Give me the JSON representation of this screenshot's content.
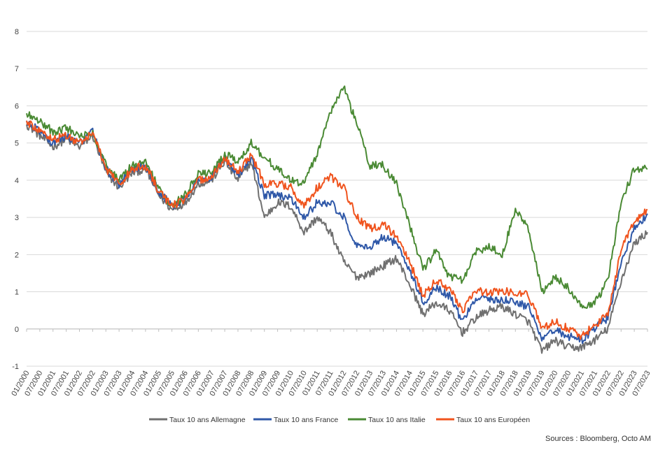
{
  "chart_data": {
    "type": "line",
    "title": "",
    "xlabel": "",
    "ylabel": "",
    "ylim": [
      -1,
      8
    ],
    "yticks": [
      "-1",
      "0",
      "1",
      "2",
      "3",
      "4",
      "5",
      "6",
      "7",
      "8"
    ],
    "grid": true,
    "legend_position": "bottom",
    "x_tick_labels": [
      "01/2000",
      "07/2000",
      "01/2001",
      "07/2001",
      "01/2002",
      "07/2002",
      "01/2003",
      "07/2003",
      "01/2004",
      "07/2004",
      "01/2005",
      "07/2005",
      "01/2006",
      "07/2006",
      "01/2007",
      "07/2007",
      "01/2008",
      "07/2008",
      "01/2009",
      "07/2009",
      "01/2010",
      "07/2010",
      "01/2011",
      "07/2011",
      "01/2012",
      "07/2012",
      "01/2013",
      "07/2013",
      "01/2014",
      "07/2014",
      "01/2015",
      "07/2015",
      "01/2016",
      "07/2016",
      "01/2017",
      "07/2017",
      "01/2018",
      "07/2018",
      "01/2019",
      "07/2019",
      "01/2020",
      "07/2020",
      "01/2021",
      "07/2021",
      "01/2022",
      "07/2022",
      "01/2023",
      "07/2023"
    ],
    "series": [
      {
        "name": "Taux 10 ans Allemagne",
        "color": "#707070",
        "points": [
          [
            "01/2000",
            5.5
          ],
          [
            "07/2000",
            5.2
          ],
          [
            "01/2001",
            4.9
          ],
          [
            "07/2001",
            5.1
          ],
          [
            "01/2002",
            4.9
          ],
          [
            "07/2002",
            5.2
          ],
          [
            "01/2003",
            4.2
          ],
          [
            "07/2003",
            3.8
          ],
          [
            "01/2004",
            4.2
          ],
          [
            "07/2004",
            4.3
          ],
          [
            "01/2005",
            3.6
          ],
          [
            "07/2005",
            3.2
          ],
          [
            "01/2006",
            3.4
          ],
          [
            "07/2006",
            3.9
          ],
          [
            "01/2007",
            4.0
          ],
          [
            "07/2007",
            4.5
          ],
          [
            "01/2008",
            4.0
          ],
          [
            "07/2008",
            4.5
          ],
          [
            "01/2009",
            3.0
          ],
          [
            "07/2009",
            3.4
          ],
          [
            "01/2010",
            3.3
          ],
          [
            "07/2010",
            2.6
          ],
          [
            "01/2011",
            3.0
          ],
          [
            "07/2011",
            2.6
          ],
          [
            "01/2012",
            1.8
          ],
          [
            "07/2012",
            1.4
          ],
          [
            "01/2013",
            1.5
          ],
          [
            "07/2013",
            1.7
          ],
          [
            "01/2014",
            1.9
          ],
          [
            "07/2014",
            1.2
          ],
          [
            "01/2015",
            0.4
          ],
          [
            "07/2015",
            0.7
          ],
          [
            "01/2016",
            0.5
          ],
          [
            "07/2016",
            -0.1
          ],
          [
            "01/2017",
            0.3
          ],
          [
            "07/2017",
            0.5
          ],
          [
            "01/2018",
            0.6
          ],
          [
            "07/2018",
            0.4
          ],
          [
            "01/2019",
            0.2
          ],
          [
            "07/2019",
            -0.6
          ],
          [
            "01/2020",
            -0.3
          ],
          [
            "07/2020",
            -0.5
          ],
          [
            "01/2021",
            -0.5
          ],
          [
            "07/2021",
            -0.3
          ],
          [
            "01/2022",
            0.0
          ],
          [
            "07/2022",
            1.3
          ],
          [
            "01/2023",
            2.3
          ],
          [
            "07/2023",
            2.6
          ]
        ]
      },
      {
        "name": "Taux 10 ans France",
        "color": "#2f58a8",
        "points": [
          [
            "01/2000",
            5.6
          ],
          [
            "07/2000",
            5.3
          ],
          [
            "01/2001",
            5.0
          ],
          [
            "07/2001",
            5.2
          ],
          [
            "01/2002",
            5.0
          ],
          [
            "07/2002",
            5.3
          ],
          [
            "01/2003",
            4.3
          ],
          [
            "07/2003",
            3.9
          ],
          [
            "01/2004",
            4.3
          ],
          [
            "07/2004",
            4.4
          ],
          [
            "01/2005",
            3.7
          ],
          [
            "07/2005",
            3.3
          ],
          [
            "01/2006",
            3.5
          ],
          [
            "07/2006",
            4.0
          ],
          [
            "01/2007",
            4.1
          ],
          [
            "07/2007",
            4.6
          ],
          [
            "01/2008",
            4.1
          ],
          [
            "07/2008",
            4.6
          ],
          [
            "01/2009",
            3.6
          ],
          [
            "07/2009",
            3.6
          ],
          [
            "01/2010",
            3.5
          ],
          [
            "07/2010",
            3.0
          ],
          [
            "01/2011",
            3.4
          ],
          [
            "07/2011",
            3.4
          ],
          [
            "01/2012",
            3.0
          ],
          [
            "07/2012",
            2.2
          ],
          [
            "01/2013",
            2.2
          ],
          [
            "07/2013",
            2.5
          ],
          [
            "01/2014",
            2.3
          ],
          [
            "07/2014",
            1.6
          ],
          [
            "01/2015",
            0.7
          ],
          [
            "07/2015",
            1.1
          ],
          [
            "01/2016",
            0.9
          ],
          [
            "07/2016",
            0.2
          ],
          [
            "01/2017",
            0.8
          ],
          [
            "07/2017",
            0.8
          ],
          [
            "01/2018",
            0.8
          ],
          [
            "07/2018",
            0.7
          ],
          [
            "01/2019",
            0.6
          ],
          [
            "07/2019",
            -0.3
          ],
          [
            "01/2020",
            0.0
          ],
          [
            "07/2020",
            -0.2
          ],
          [
            "01/2021",
            -0.3
          ],
          [
            "07/2021",
            0.0
          ],
          [
            "01/2022",
            0.3
          ],
          [
            "07/2022",
            1.8
          ],
          [
            "01/2023",
            2.7
          ],
          [
            "07/2023",
            3.1
          ]
        ]
      },
      {
        "name": "Taux 10 ans Italie",
        "color": "#4a8a34",
        "points": [
          [
            "01/2000",
            5.8
          ],
          [
            "07/2000",
            5.6
          ],
          [
            "01/2001",
            5.3
          ],
          [
            "07/2001",
            5.4
          ],
          [
            "01/2002",
            5.2
          ],
          [
            "07/2002",
            5.3
          ],
          [
            "01/2003",
            4.4
          ],
          [
            "07/2003",
            4.0
          ],
          [
            "01/2004",
            4.4
          ],
          [
            "07/2004",
            4.5
          ],
          [
            "01/2005",
            3.8
          ],
          [
            "07/2005",
            3.3
          ],
          [
            "01/2006",
            3.6
          ],
          [
            "07/2006",
            4.2
          ],
          [
            "01/2007",
            4.2
          ],
          [
            "07/2007",
            4.7
          ],
          [
            "01/2008",
            4.5
          ],
          [
            "07/2008",
            5.0
          ],
          [
            "01/2009",
            4.6
          ],
          [
            "07/2009",
            4.3
          ],
          [
            "01/2010",
            4.0
          ],
          [
            "07/2010",
            3.9
          ],
          [
            "01/2011",
            4.7
          ],
          [
            "07/2011",
            5.8
          ],
          [
            "01/2012",
            6.5
          ],
          [
            "07/2012",
            5.5
          ],
          [
            "01/2013",
            4.4
          ],
          [
            "07/2013",
            4.4
          ],
          [
            "01/2014",
            3.9
          ],
          [
            "07/2014",
            2.8
          ],
          [
            "01/2015",
            1.6
          ],
          [
            "07/2015",
            2.1
          ],
          [
            "01/2016",
            1.4
          ],
          [
            "07/2016",
            1.3
          ],
          [
            "01/2017",
            2.1
          ],
          [
            "07/2017",
            2.2
          ],
          [
            "01/2018",
            2.0
          ],
          [
            "07/2018",
            3.2
          ],
          [
            "01/2019",
            2.7
          ],
          [
            "07/2019",
            1.0
          ],
          [
            "01/2020",
            1.4
          ],
          [
            "07/2020",
            1.1
          ],
          [
            "01/2021",
            0.6
          ],
          [
            "07/2021",
            0.7
          ],
          [
            "01/2022",
            1.3
          ],
          [
            "07/2022",
            3.4
          ],
          [
            "01/2023",
            4.3
          ],
          [
            "07/2023",
            4.3
          ]
        ]
      },
      {
        "name": "Taux 10 ans Européen",
        "color": "#f0541e",
        "points": [
          [
            "01/2000",
            5.6
          ],
          [
            "07/2000",
            5.3
          ],
          [
            "01/2001",
            5.1
          ],
          [
            "07/2001",
            5.2
          ],
          [
            "01/2002",
            5.0
          ],
          [
            "07/2002",
            5.3
          ],
          [
            "01/2003",
            4.3
          ],
          [
            "07/2003",
            3.9
          ],
          [
            "01/2004",
            4.3
          ],
          [
            "07/2004",
            4.4
          ],
          [
            "01/2005",
            3.7
          ],
          [
            "07/2005",
            3.3
          ],
          [
            "01/2006",
            3.5
          ],
          [
            "07/2006",
            4.0
          ],
          [
            "01/2007",
            4.1
          ],
          [
            "07/2007",
            4.6
          ],
          [
            "01/2008",
            4.2
          ],
          [
            "07/2008",
            4.7
          ],
          [
            "01/2009",
            3.9
          ],
          [
            "07/2009",
            3.9
          ],
          [
            "01/2010",
            3.8
          ],
          [
            "07/2010",
            3.3
          ],
          [
            "01/2011",
            3.8
          ],
          [
            "07/2011",
            4.1
          ],
          [
            "01/2012",
            3.8
          ],
          [
            "07/2012",
            3.0
          ],
          [
            "01/2013",
            2.7
          ],
          [
            "07/2013",
            2.8
          ],
          [
            "01/2014",
            2.5
          ],
          [
            "07/2014",
            1.8
          ],
          [
            "01/2015",
            0.9
          ],
          [
            "07/2015",
            1.3
          ],
          [
            "01/2016",
            1.1
          ],
          [
            "07/2016",
            0.5
          ],
          [
            "01/2017",
            1.0
          ],
          [
            "07/2017",
            1.0
          ],
          [
            "01/2018",
            1.0
          ],
          [
            "07/2018",
            1.0
          ],
          [
            "01/2019",
            0.9
          ],
          [
            "07/2019",
            0.0
          ],
          [
            "01/2020",
            0.2
          ],
          [
            "07/2020",
            0.0
          ],
          [
            "01/2021",
            -0.2
          ],
          [
            "07/2021",
            0.1
          ],
          [
            "01/2022",
            0.4
          ],
          [
            "07/2022",
            2.1
          ],
          [
            "01/2023",
            2.9
          ],
          [
            "07/2023",
            3.2
          ]
        ]
      }
    ]
  },
  "source_note": "Sources : Bloomberg, Octo AM"
}
